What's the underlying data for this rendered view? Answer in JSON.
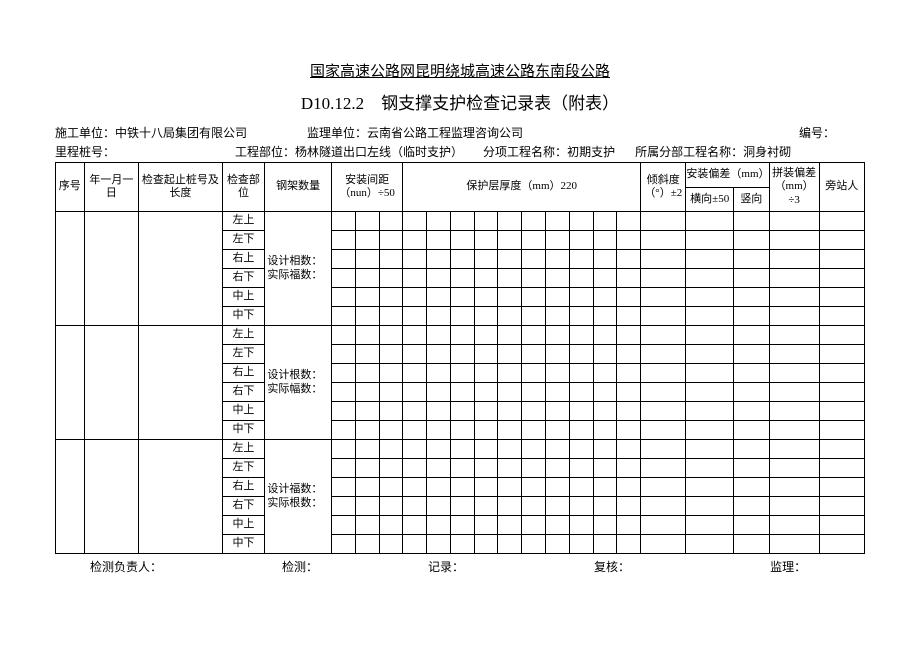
{
  "title_main": "国家高速公路网昆明绕城高速公路东南段公路",
  "title_sub": "D10.12.2　钢支撑支护检查记录表（附表）",
  "info1": {
    "construction_label": "施工单位：",
    "construction_value": "中铁十八局集团有限公司",
    "supervision_label": "监理单位：",
    "supervision_value": "云南省公路工程监理咨询公司",
    "code_label": "编号："
  },
  "info2": {
    "mileage_label": "里程桩号：",
    "part_label": "工程部位：",
    "part_value": "杨林隧道出口左线（临时支护）",
    "sub_label": "分项工程名称：",
    "sub_value": "初期支护",
    "section_label": "所属分部工程名称：",
    "section_value": "洞身衬砌"
  },
  "headers": {
    "seq": "序号",
    "date": "年一月一日",
    "pile": "检查起止桩号及长度",
    "part": "检查部位",
    "qty": "钢架数量",
    "spacing": "安装间距（nun）÷50",
    "protect": "保护层厚度（mm）220",
    "tilt": "倾斜度（°）±2",
    "dev_group": "安装偏差（mm）",
    "dev_h": "横向±50",
    "dev_v": "竖向",
    "assem": "拼装偏差（mm）÷3",
    "witness": "旁站人"
  },
  "pos_labels": [
    "左上",
    "左下",
    "右上",
    "右下",
    "中上",
    "中下"
  ],
  "qty_texts": [
    "设计相数：实际福数：",
    "设计根数：实际幅数：",
    "设计福数：实际根数："
  ],
  "footer": {
    "leader": "检测负责人：",
    "detect": "检测：",
    "record": "记录：",
    "review": "复核：",
    "supervise": "监理："
  }
}
